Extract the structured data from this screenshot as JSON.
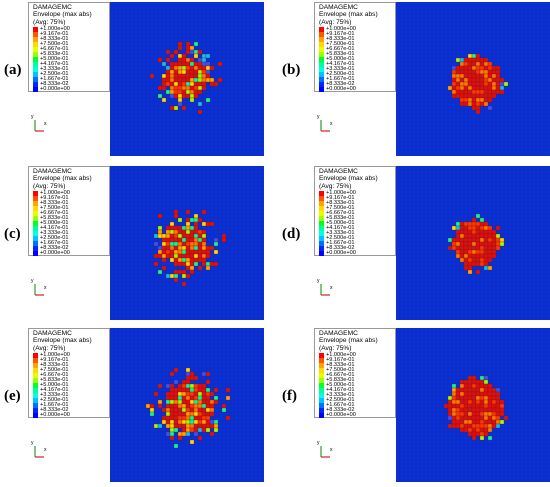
{
  "legend": {
    "variable": "DAMAGEMC",
    "subtitle": "Envelope (max abs)",
    "averaging": "(Avg: 75%)",
    "values": [
      "+1.000e+00",
      "+9.167e-01",
      "+8.333e-01",
      "+7.500e-01",
      "+6.667e-01",
      "+5.833e-01",
      "+5.000e-01",
      "+4.167e-01",
      "+3.333e-01",
      "+2.500e-01",
      "+1.667e-01",
      "+8.333e-02",
      "+0.000e+00"
    ],
    "colors": [
      "#ff0000",
      "#ff5400",
      "#ffa400",
      "#ffd900",
      "#e3ff00",
      "#9eff00",
      "#00ff2e",
      "#00ff9c",
      "#00ffe6",
      "#00c3ff",
      "#0071ff",
      "#0027ff",
      "#0000ff"
    ]
  },
  "triad": {
    "x": "x",
    "y": "y"
  },
  "panels": [
    {
      "label": "(a)",
      "damage_pattern": "fragmented core with radial spread"
    },
    {
      "label": "(b)",
      "damage_pattern": "compact core"
    },
    {
      "label": "(c)",
      "damage_pattern": "wide fragmented core"
    },
    {
      "label": "(d)",
      "damage_pattern": "compact core"
    },
    {
      "label": "(e)",
      "damage_pattern": "fragmented core with radial spread"
    },
    {
      "label": "(f)",
      "damage_pattern": "compact core"
    }
  ],
  "colors": {
    "background": "#0b31d6",
    "grid": "#0a2bb8",
    "damage_high": "#e01010"
  }
}
